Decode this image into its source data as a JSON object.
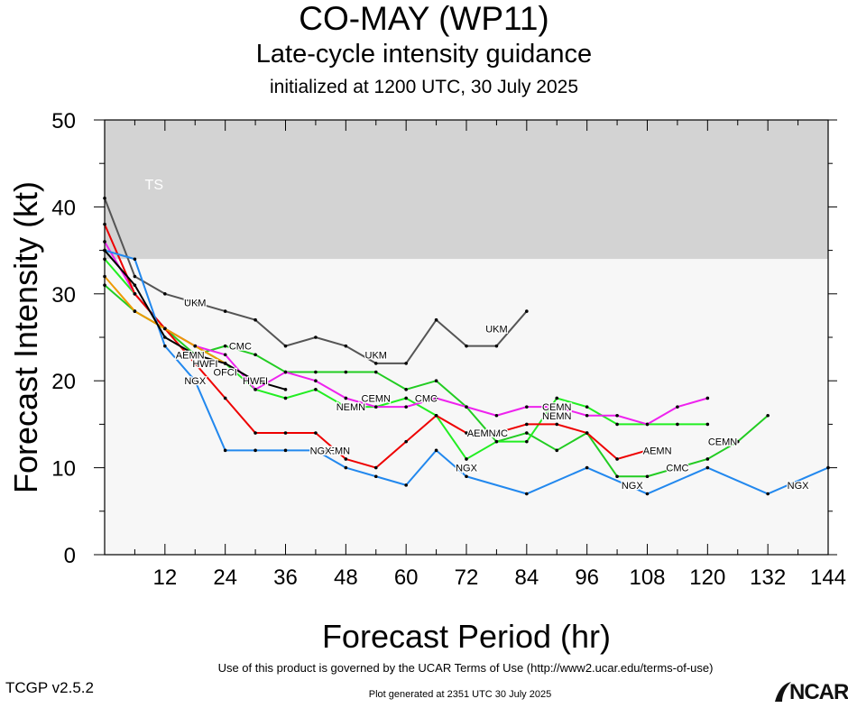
{
  "header": {
    "title": "CO-MAY (WP11)",
    "subtitle": "Late-cycle intensity guidance",
    "initialized": "initialized at 1200 UTC, 30 July 2025"
  },
  "footer": {
    "terms": "Use of this product is governed by the UCAR Terms of Use (http://www2.ucar.edu/terms-of-use)",
    "version": "TCGP v2.5.2",
    "generated": "Plot generated at 2351 UTC   30 July 2025",
    "logo_text": "NCAR"
  },
  "chart_data": {
    "type": "line",
    "xlabel": "Forecast Period (hr)",
    "ylabel": "Forecast Intensity (kt)",
    "xlim": [
      0,
      144
    ],
    "ylim": [
      0,
      50
    ],
    "xticks": [
      12,
      24,
      36,
      48,
      60,
      72,
      84,
      96,
      108,
      120,
      132,
      144
    ],
    "yticks": [
      0,
      10,
      20,
      30,
      40,
      50
    ],
    "grid": false,
    "bands": [
      {
        "label": "TS",
        "from": 34,
        "to": 50,
        "color": "#d3d3d3"
      },
      {
        "label": "",
        "from": 0,
        "to": 34,
        "color": "#f7f7f7"
      }
    ],
    "series": [
      {
        "name": "UKM",
        "color": "#555555",
        "label_at": [
          [
            18,
            29
          ],
          [
            54,
            23
          ],
          [
            78,
            26
          ]
        ],
        "x": [
          0,
          6,
          12,
          24,
          30,
          36,
          42,
          48,
          54,
          60,
          66,
          72,
          78,
          84
        ],
        "y": [
          41,
          32,
          30,
          28,
          27,
          24,
          25,
          24,
          22,
          22,
          27,
          24,
          24,
          28
        ]
      },
      {
        "name": "CMC",
        "color": "#22cc22",
        "label_at": [
          [
            27,
            24
          ],
          [
            64,
            18
          ],
          [
            78,
            14
          ],
          [
            114,
            10
          ]
        ],
        "x": [
          0,
          6,
          12,
          18,
          24,
          30,
          36,
          42,
          48,
          54,
          60,
          66,
          72,
          78,
          84,
          90,
          96,
          102,
          108,
          114,
          120,
          126,
          132
        ],
        "y": [
          31,
          28,
          26,
          23,
          24,
          23,
          21,
          21,
          21,
          21,
          19,
          20,
          17,
          13,
          14,
          12,
          14,
          9,
          9,
          10,
          11,
          13,
          16
        ]
      },
      {
        "name": "CEMN",
        "color": "#22ee22",
        "label_at": [
          [
            54,
            18
          ],
          [
            90,
            17
          ],
          [
            123,
            13
          ]
        ],
        "x": [
          0,
          6,
          12,
          18,
          24,
          30,
          36,
          42,
          48,
          54,
          60,
          66,
          72,
          78,
          84,
          90,
          96,
          102,
          108,
          114,
          120
        ],
        "y": [
          34,
          30,
          26,
          24,
          22,
          19,
          18,
          19,
          17,
          17,
          18,
          16,
          11,
          13,
          13,
          18,
          17,
          15,
          15,
          15,
          15
        ]
      },
      {
        "name": "NEMN",
        "color": "#ee22ee",
        "label_at": [
          [
            49,
            17
          ],
          [
            90,
            16
          ]
        ],
        "x": [
          0,
          6,
          12,
          18,
          24,
          30,
          36,
          42,
          48,
          54,
          60,
          66,
          72,
          78,
          84,
          90,
          96,
          102,
          108,
          114,
          120
        ],
        "y": [
          36,
          30,
          26,
          24,
          23,
          19,
          21,
          20,
          18,
          17,
          17,
          18,
          17,
          16,
          17,
          17,
          16,
          16,
          15,
          17,
          18
        ]
      },
      {
        "name": "AEMN",
        "color": "#ee0000",
        "label_at": [
          [
            17,
            23
          ],
          [
            46,
            12
          ],
          [
            75,
            14
          ],
          [
            110,
            12
          ]
        ],
        "x": [
          0,
          6,
          12,
          18,
          24,
          30,
          36,
          42,
          48,
          54,
          60,
          66,
          72,
          78,
          84,
          90,
          96,
          102,
          108
        ],
        "y": [
          38,
          30,
          26,
          22,
          18,
          14,
          14,
          14,
          11,
          10,
          13,
          16,
          14,
          14,
          15,
          15,
          14,
          11,
          12
        ]
      },
      {
        "name": "NGX",
        "color": "#2288ee",
        "label_at": [
          [
            18,
            20
          ],
          [
            43,
            12
          ],
          [
            72,
            10
          ],
          [
            105,
            8
          ],
          [
            138,
            8
          ]
        ],
        "x": [
          0,
          6,
          12,
          18,
          24,
          30,
          36,
          42,
          48,
          54,
          60,
          66,
          72,
          84,
          96,
          108,
          120,
          132,
          144
        ],
        "y": [
          35,
          34,
          24,
          20,
          12,
          12,
          12,
          12,
          10,
          9,
          8,
          12,
          9,
          7,
          10,
          7,
          10,
          7,
          10
        ]
      },
      {
        "name": "OFCI",
        "color": "#ee9900",
        "label_at": [
          [
            24,
            21
          ]
        ],
        "x": [
          0,
          6,
          12,
          18,
          24
        ],
        "y": [
          32,
          28,
          26,
          24,
          22
        ]
      },
      {
        "name": "HWFI",
        "color": "#000000",
        "label_at": [
          [
            20,
            22
          ],
          [
            30,
            20
          ]
        ],
        "x": [
          0,
          6,
          12,
          18,
          24,
          30,
          36
        ],
        "y": [
          35,
          31,
          25,
          23,
          22,
          20,
          19
        ]
      }
    ],
    "band_labels": [
      {
        "text": "TS",
        "x": 8,
        "y": 42
      }
    ]
  }
}
